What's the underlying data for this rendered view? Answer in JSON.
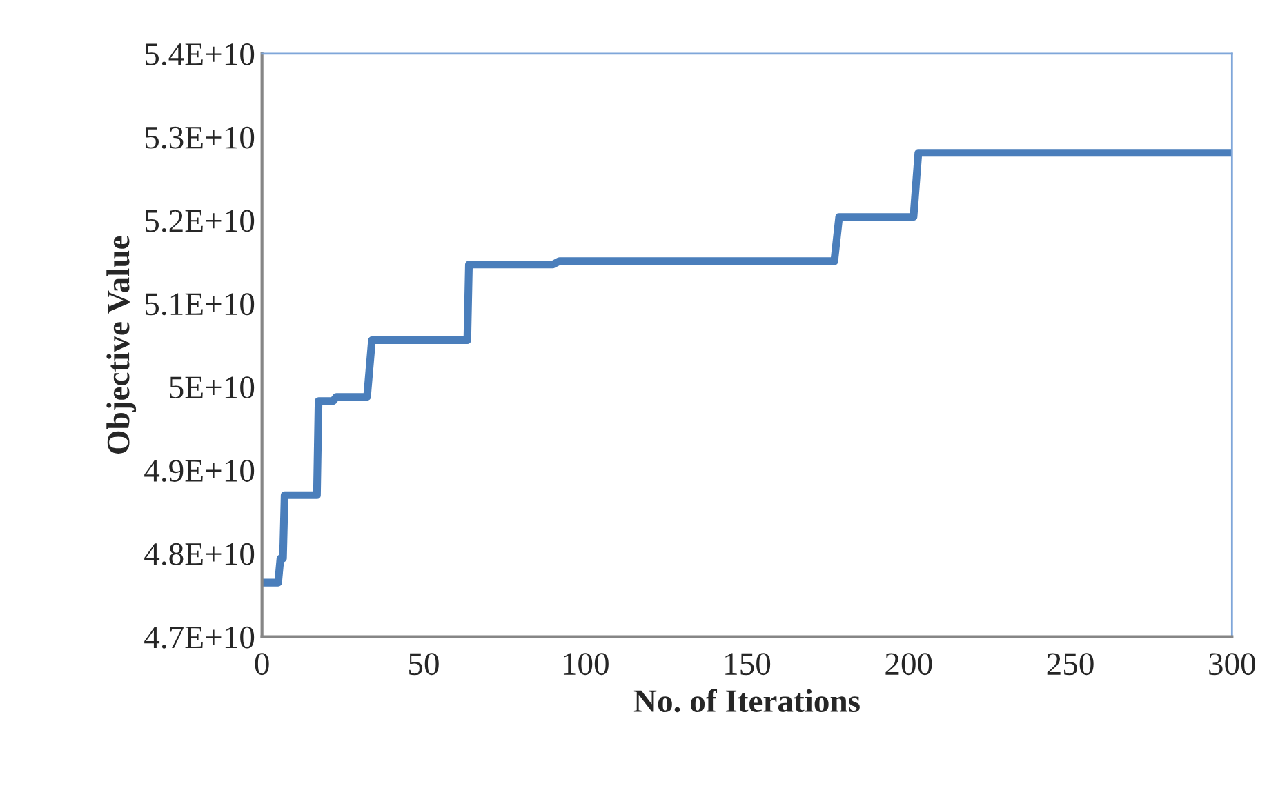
{
  "chart_data": {
    "type": "line",
    "xlabel": "No. of Iterations",
    "ylabel": "Objective Value",
    "x": [
      0,
      5,
      5.7,
      6.5,
      7,
      17,
      17.5,
      22,
      23,
      32.5,
      34,
      63.5,
      64,
      90,
      92,
      177,
      178.5,
      201.5,
      203,
      300
    ],
    "series": [
      {
        "color": "#4a7ebb",
        "values": [
          47650000000,
          47650000000,
          47940000000,
          47940000000,
          48700000000,
          48700000000,
          49830000000,
          49830000000,
          49880000000,
          49880000000,
          50560000000,
          50560000000,
          51470000000,
          51470000000,
          51510000000,
          51510000000,
          52040000000,
          52040000000,
          52810000000,
          52810000000
        ]
      }
    ],
    "xlim": [
      0,
      300
    ],
    "xticks": [
      0,
      50,
      100,
      150,
      200,
      250,
      300
    ],
    "ylim": [
      47000000000,
      54000000000
    ],
    "yticks": [
      {
        "value": 47000000000,
        "label": "4.7E+10"
      },
      {
        "value": 48000000000,
        "label": "4.8E+10"
      },
      {
        "value": 49000000000,
        "label": "4.9E+10"
      },
      {
        "value": 50000000000,
        "label": "5E+10"
      },
      {
        "value": 51000000000,
        "label": "5.1E+10"
      },
      {
        "value": 52000000000,
        "label": "5.2E+10"
      },
      {
        "value": 53000000000,
        "label": "5.3E+10"
      },
      {
        "value": 54000000000,
        "label": "5.4E+10"
      }
    ],
    "grid": false,
    "legend": false
  }
}
